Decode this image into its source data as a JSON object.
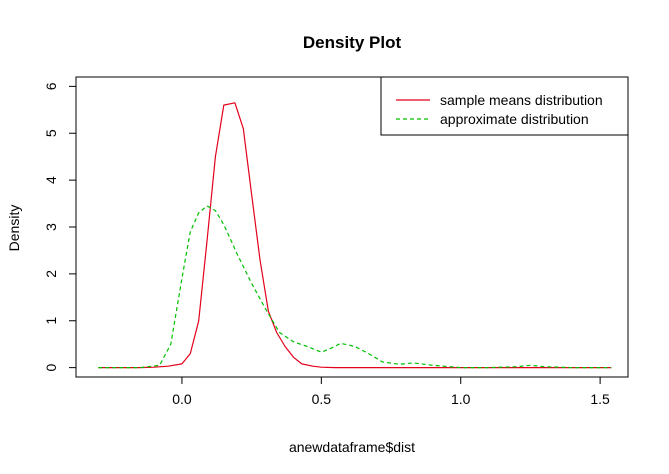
{
  "chart_data": {
    "type": "line",
    "title": "Density Plot",
    "xlabel": "anewdataframe$dist",
    "ylabel": "Density",
    "xlim": [
      -0.38,
      1.6
    ],
    "ylim": [
      -0.2,
      6.2
    ],
    "xticks": [
      0.0,
      0.5,
      1.0,
      1.5
    ],
    "xtick_labels": [
      "0.0",
      "0.5",
      "1.0",
      "1.5"
    ],
    "yticks": [
      0,
      1,
      2,
      3,
      4,
      5,
      6
    ],
    "ytick_labels": [
      "0",
      "1",
      "2",
      "3",
      "4",
      "5",
      "6"
    ],
    "grid": false,
    "legend_position": "top-right",
    "series": [
      {
        "name": "sample means distribution",
        "color": "#e3001b",
        "style": "solid",
        "x": [
          -0.3,
          -0.15,
          -0.1,
          -0.05,
          0.0,
          0.03,
          0.06,
          0.09,
          0.12,
          0.15,
          0.19,
          0.22,
          0.25,
          0.28,
          0.31,
          0.34,
          0.37,
          0.4,
          0.43,
          0.47,
          0.5,
          0.55,
          0.6,
          0.7,
          0.8,
          1.0,
          1.2,
          1.3,
          1.4,
          1.54
        ],
        "y": [
          0.0,
          0.0,
          0.01,
          0.03,
          0.08,
          0.3,
          1.0,
          2.7,
          4.5,
          5.6,
          5.65,
          5.1,
          3.7,
          2.3,
          1.2,
          0.75,
          0.45,
          0.22,
          0.08,
          0.03,
          0.01,
          0.0,
          0.0,
          0.0,
          0.0,
          0.0,
          0.0,
          0.0,
          0.0,
          0.0
        ]
      },
      {
        "name": "approximate distribution",
        "color": "#00c000",
        "style": "dashed",
        "x": [
          -0.3,
          -0.15,
          -0.08,
          -0.04,
          0.0,
          0.03,
          0.06,
          0.09,
          0.12,
          0.15,
          0.2,
          0.25,
          0.3,
          0.35,
          0.4,
          0.45,
          0.5,
          0.53,
          0.57,
          0.62,
          0.67,
          0.72,
          0.78,
          0.83,
          0.9,
          1.0,
          1.1,
          1.2,
          1.25,
          1.3,
          1.4,
          1.54
        ],
        "y": [
          0.0,
          0.0,
          0.05,
          0.5,
          1.9,
          2.9,
          3.3,
          3.45,
          3.35,
          3.05,
          2.4,
          1.8,
          1.25,
          0.75,
          0.55,
          0.45,
          0.33,
          0.4,
          0.52,
          0.45,
          0.3,
          0.12,
          0.07,
          0.1,
          0.05,
          0.0,
          0.0,
          0.02,
          0.05,
          0.02,
          0.0,
          0.0
        ]
      }
    ]
  }
}
